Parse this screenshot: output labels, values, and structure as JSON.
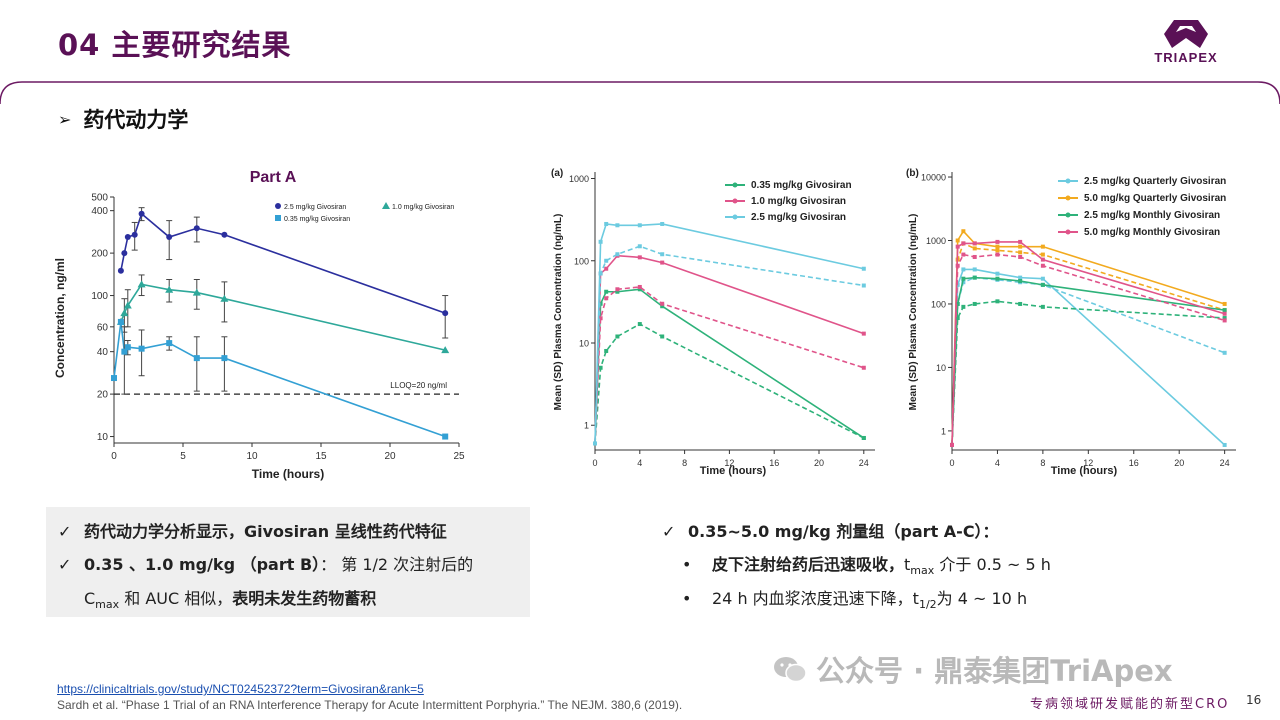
{
  "header": {
    "title": "04 主要研究结果",
    "logo_text": "TRIAPEX"
  },
  "section": {
    "marker": "➢",
    "title": "药代动力学"
  },
  "chart_data": [
    {
      "type": "line",
      "title": "Part A",
      "xlabel": "Time (hours)",
      "ylabel": "Concentration, ng/ml",
      "yscale": "log",
      "xlim": [
        0,
        25
      ],
      "ylim": [
        9,
        500
      ],
      "xticks": [
        "0",
        "5",
        "10",
        "15",
        "20",
        "25"
      ],
      "yticks": [
        "10",
        "20",
        "40",
        "60",
        "100",
        "200",
        "400",
        "500"
      ],
      "legend": "top-right",
      "reference_line": {
        "y": 20,
        "label": "LLOQ=20 ng/ml"
      },
      "series": [
        {
          "name": "2.5 mg/kg Givosiran",
          "color": "#2b2f9e",
          "marker": "circle",
          "x": [
            0.5,
            0.75,
            1,
            1.5,
            2,
            4,
            6,
            8,
            24
          ],
          "y": [
            150,
            200,
            260,
            270,
            380,
            260,
            300,
            270,
            75
          ],
          "err": [
            0,
            0,
            0,
            60,
            40,
            80,
            60,
            0,
            25
          ]
        },
        {
          "name": "1.0 mg/kg Givosiran",
          "color": "#2ea89a",
          "marker": "triangle",
          "x": [
            0.5,
            0.75,
            1,
            2,
            4,
            6,
            8,
            24
          ],
          "y": [
            65,
            75,
            85,
            120,
            110,
            105,
            95,
            41
          ],
          "err": [
            0,
            20,
            25,
            20,
            20,
            25,
            30,
            0
          ]
        },
        {
          "name": "0.35 mg/kg Givosiran",
          "color": "#33a0d4",
          "marker": "square",
          "x": [
            0,
            0.5,
            0.75,
            1,
            2,
            4,
            6,
            8,
            24
          ],
          "y": [
            26,
            65,
            40,
            43,
            42,
            46,
            36,
            36,
            10
          ],
          "err": [
            0,
            0,
            20,
            5,
            15,
            5,
            15,
            15,
            0
          ]
        }
      ]
    },
    {
      "type": "line",
      "panel": "(a)",
      "xlabel": "Time (hours)",
      "ylabel": "Mean (SD) Plasma Concentration (ng/mL)",
      "yscale": "log",
      "xlim": [
        0,
        25
      ],
      "ylim": [
        0.5,
        1200
      ],
      "xticks": [
        "0",
        "4",
        "8",
        "12",
        "16",
        "20",
        "24"
      ],
      "yticks": [
        "1",
        "10",
        "100",
        "1000"
      ],
      "legend": "top-right",
      "series": [
        {
          "name": "0.35 mg/kg Givosiran",
          "color": "#2eb27a",
          "style": "solid",
          "x": [
            0,
            0.5,
            1,
            2,
            4,
            6,
            24
          ],
          "y": [
            0.6,
            30,
            42,
            42,
            45,
            28,
            0.7
          ]
        },
        {
          "name": "",
          "color": "#2eb27a",
          "style": "dashed",
          "x": [
            0,
            0.5,
            1,
            2,
            4,
            6,
            24
          ],
          "y": [
            0.6,
            5,
            8,
            12,
            17,
            12,
            0.7
          ]
        },
        {
          "name": "1.0 mg/kg Givosiran",
          "color": "#e0548a",
          "style": "solid",
          "x": [
            0,
            0.5,
            1,
            2,
            4,
            6,
            24
          ],
          "y": [
            0.6,
            70,
            80,
            115,
            110,
            95,
            13
          ]
        },
        {
          "name": "",
          "color": "#e0548a",
          "style": "dashed",
          "x": [
            0,
            0.5,
            1,
            2,
            4,
            6,
            24
          ],
          "y": [
            0.6,
            20,
            35,
            45,
            48,
            30,
            5
          ]
        },
        {
          "name": "2.5 mg/kg Givosiran",
          "color": "#6ccbe0",
          "style": "solid",
          "x": [
            0,
            0.5,
            1,
            2,
            4,
            6,
            24
          ],
          "y": [
            0.6,
            170,
            280,
            270,
            270,
            280,
            80
          ]
        },
        {
          "name": "",
          "color": "#6ccbe0",
          "style": "dashed",
          "x": [
            0,
            0.5,
            1,
            2,
            4,
            6,
            24
          ],
          "y": [
            0.6,
            70,
            100,
            120,
            150,
            120,
            50
          ]
        }
      ]
    },
    {
      "type": "line",
      "panel": "(b)",
      "xlabel": "Time (hours)",
      "ylabel": "Mean (SD) Plasma Concentration (ng/mL)",
      "yscale": "log",
      "xlim": [
        0,
        25
      ],
      "ylim": [
        0.5,
        12000
      ],
      "xticks": [
        "0",
        "4",
        "8",
        "12",
        "16",
        "20",
        "24"
      ],
      "yticks": [
        "1",
        "10",
        "100",
        "1000",
        "10000"
      ],
      "legend": "top-right",
      "series": [
        {
          "name": "2.5 mg/kg Quarterly Givosiran",
          "color": "#6ccbe0",
          "style": "solid",
          "x": [
            0,
            0.5,
            1,
            2,
            4,
            6,
            8,
            24
          ],
          "y": [
            0.6,
            200,
            350,
            350,
            300,
            260,
            250,
            0.6
          ]
        },
        {
          "name": "",
          "color": "#6ccbe0",
          "style": "dashed",
          "x": [
            0,
            0.5,
            1,
            2,
            4,
            6,
            8,
            24
          ],
          "y": [
            0.6,
            100,
            220,
            260,
            240,
            220,
            200,
            17
          ]
        },
        {
          "name": "5.0 mg/kg Quarterly Givosiran",
          "color": "#f2aa1f",
          "style": "solid",
          "x": [
            0,
            0.5,
            1,
            2,
            4,
            6,
            8,
            24
          ],
          "y": [
            0.6,
            1000,
            1400,
            900,
            800,
            800,
            800,
            100
          ]
        },
        {
          "name": "",
          "color": "#f2aa1f",
          "style": "dashed",
          "x": [
            0,
            0.5,
            1,
            2,
            4,
            6,
            8,
            24
          ],
          "y": [
            0.6,
            500,
            900,
            750,
            700,
            650,
            600,
            80
          ]
        },
        {
          "name": "2.5 mg/kg Monthly Givosiran",
          "color": "#2eb27a",
          "style": "solid",
          "x": [
            0,
            0.5,
            1,
            2,
            4,
            6,
            8,
            24
          ],
          "y": [
            0.6,
            100,
            250,
            260,
            250,
            230,
            200,
            80
          ]
        },
        {
          "name": "",
          "color": "#2eb27a",
          "style": "dashed",
          "x": [
            0,
            0.5,
            1,
            2,
            4,
            6,
            8,
            24
          ],
          "y": [
            0.6,
            60,
            90,
            100,
            110,
            100,
            90,
            60
          ]
        },
        {
          "name": "5.0 mg/kg Monthly Givosiran",
          "color": "#e0548a",
          "style": "solid",
          "x": [
            0,
            0.5,
            1,
            2,
            4,
            6,
            8,
            24
          ],
          "y": [
            0.6,
            800,
            900,
            900,
            950,
            950,
            500,
            70
          ]
        },
        {
          "name": "",
          "color": "#e0548a",
          "style": "dashed",
          "x": [
            0,
            0.5,
            1,
            2,
            4,
            6,
            8,
            24
          ],
          "y": [
            0.6,
            400,
            600,
            550,
            600,
            550,
            400,
            55
          ]
        }
      ]
    }
  ],
  "summary_left": {
    "check": "✓",
    "line1_b": "药代动力学分析显示，Givosiran 呈线性药代特征",
    "line2_b": "0.35 、1.0 mg/kg （part B）",
    "line2_t": "： 第 1/2 次注射后的",
    "line3_c": "C",
    "line3_sub": "max",
    "line3_t": " 和 AUC 相似，",
    "line3_b": "表明未发生药物蓄积"
  },
  "summary_right": {
    "check": "✓",
    "title": "0.35~5.0 mg/kg 剂量组（part A-C）：",
    "bullet": "•",
    "b1_b": "皮下注射给药后迅速吸收，",
    "b1_t": "t",
    "b1_sub": "max",
    "b1_rest": " 介于 0.5 ~ 5 h",
    "b2_a": "24 h 内血浆浓度迅速下降，t",
    "b2_sub": "1/2",
    "b2_rest": "为 4 ~ 10 h"
  },
  "refs": {
    "link": "https://clinicaltrials.gov/study/NCT02452372?term=Givosiran&rank=5",
    "citation": "Sardh et al. “Phase 1 Trial of an RNA Interference Therapy for Acute Intermittent Porphyria.” The NEJM. 380,6 (2019)."
  },
  "footer": {
    "watermark": "公众号 · 鼎泰集团TriApex",
    "tagline": "专病领域研发赋能的新型CRO",
    "page_number": "16"
  },
  "colors": {
    "brand": "#5a1156",
    "accent": "#6c1a63"
  }
}
